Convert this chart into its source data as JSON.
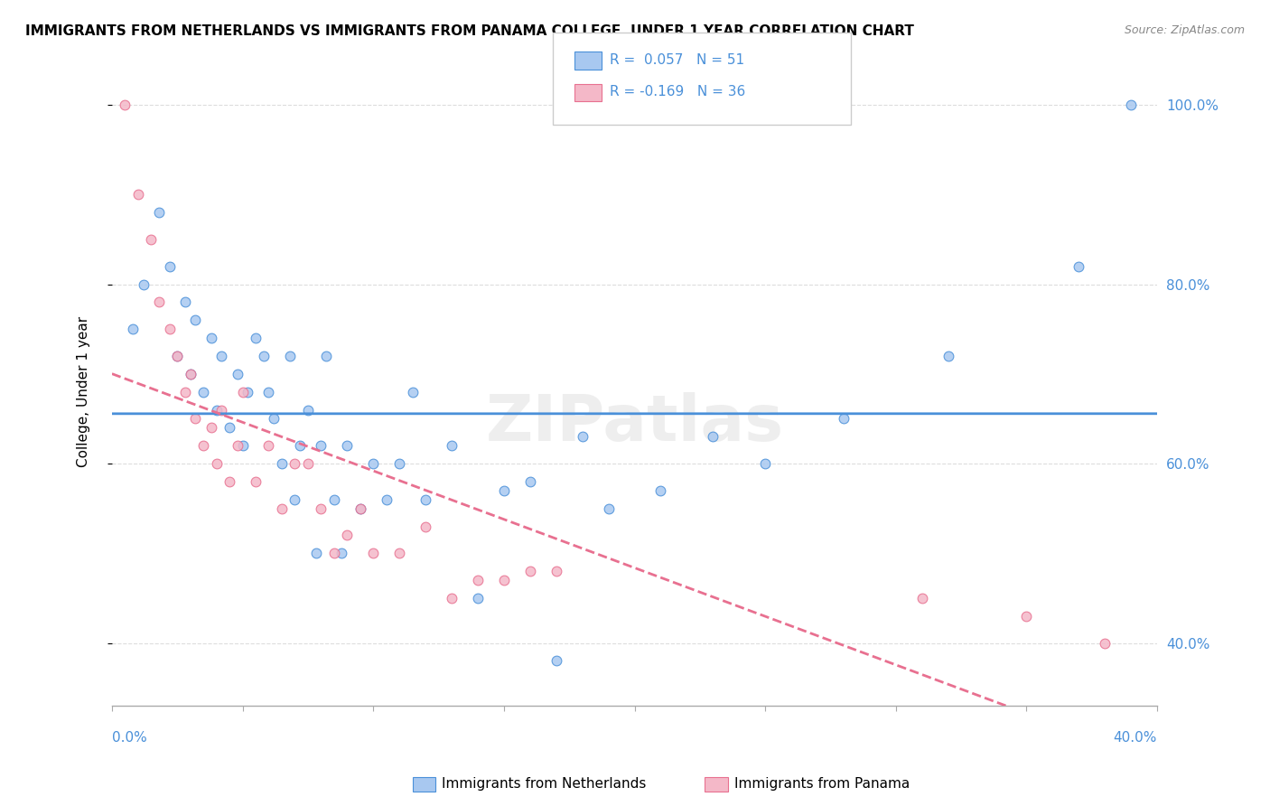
{
  "title": "IMMIGRANTS FROM NETHERLANDS VS IMMIGRANTS FROM PANAMA COLLEGE, UNDER 1 YEAR CORRELATION CHART",
  "source": "Source: ZipAtlas.com",
  "ylabel": "College, Under 1 year",
  "xlim": [
    0.0,
    0.4
  ],
  "ylim": [
    0.33,
    1.03
  ],
  "yticks": [
    0.4,
    0.6,
    0.8,
    1.0
  ],
  "ytick_labels": [
    "40.0%",
    "60.0%",
    "80.0%",
    "100.0%"
  ],
  "legend_r1": "R =  0.057",
  "legend_n1": "N = 51",
  "legend_r2": "R = -0.169",
  "legend_n2": "N = 36",
  "netherlands_color": "#a8c8f0",
  "panama_color": "#f4b8c8",
  "netherlands_line_color": "#4a90d9",
  "panama_line_color": "#e87090",
  "legend_text_color": "#4a90d9",
  "watermark": "ZIPatlas",
  "netherlands_x": [
    0.008,
    0.012,
    0.018,
    0.022,
    0.025,
    0.028,
    0.03,
    0.032,
    0.035,
    0.038,
    0.04,
    0.042,
    0.045,
    0.048,
    0.05,
    0.052,
    0.055,
    0.058,
    0.06,
    0.062,
    0.065,
    0.068,
    0.07,
    0.072,
    0.075,
    0.078,
    0.08,
    0.082,
    0.085,
    0.088,
    0.09,
    0.095,
    0.1,
    0.105,
    0.11,
    0.115,
    0.12,
    0.13,
    0.14,
    0.15,
    0.16,
    0.17,
    0.18,
    0.19,
    0.21,
    0.23,
    0.25,
    0.28,
    0.32,
    0.37,
    0.39
  ],
  "netherlands_y": [
    0.75,
    0.8,
    0.88,
    0.82,
    0.72,
    0.78,
    0.7,
    0.76,
    0.68,
    0.74,
    0.66,
    0.72,
    0.64,
    0.7,
    0.62,
    0.68,
    0.74,
    0.72,
    0.68,
    0.65,
    0.6,
    0.72,
    0.56,
    0.62,
    0.66,
    0.5,
    0.62,
    0.72,
    0.56,
    0.5,
    0.62,
    0.55,
    0.6,
    0.56,
    0.6,
    0.68,
    0.56,
    0.62,
    0.45,
    0.57,
    0.58,
    0.38,
    0.63,
    0.55,
    0.57,
    0.63,
    0.6,
    0.65,
    0.72,
    0.82,
    1.0
  ],
  "panama_x": [
    0.005,
    0.01,
    0.015,
    0.018,
    0.022,
    0.025,
    0.028,
    0.03,
    0.032,
    0.035,
    0.038,
    0.04,
    0.042,
    0.045,
    0.048,
    0.05,
    0.055,
    0.06,
    0.065,
    0.07,
    0.075,
    0.08,
    0.085,
    0.09,
    0.095,
    0.1,
    0.11,
    0.12,
    0.13,
    0.14,
    0.15,
    0.16,
    0.17,
    0.31,
    0.35,
    0.38
  ],
  "panama_y": [
    1.0,
    0.9,
    0.85,
    0.78,
    0.75,
    0.72,
    0.68,
    0.7,
    0.65,
    0.62,
    0.64,
    0.6,
    0.66,
    0.58,
    0.62,
    0.68,
    0.58,
    0.62,
    0.55,
    0.6,
    0.6,
    0.55,
    0.5,
    0.52,
    0.55,
    0.5,
    0.5,
    0.53,
    0.45,
    0.47,
    0.47,
    0.48,
    0.48,
    0.45,
    0.43,
    0.4
  ]
}
